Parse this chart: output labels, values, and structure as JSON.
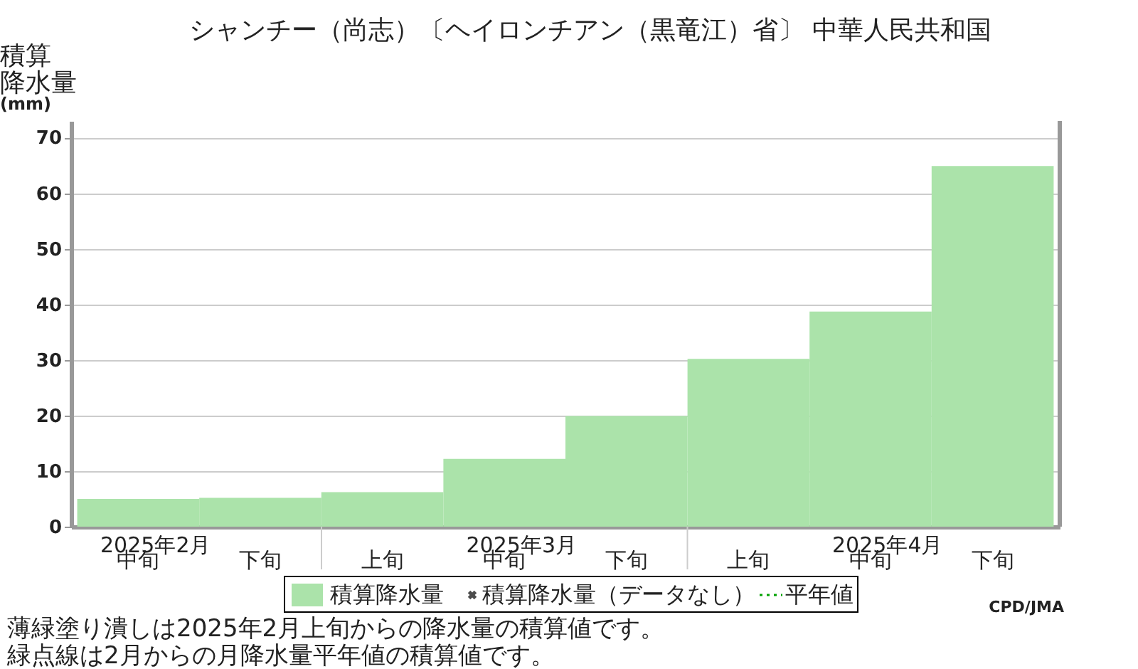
{
  "chart_data": {
    "type": "bar",
    "title": "シャンチー（尚志）〔ヘイロンチアン（黒竜江）省〕 中華人民共和国",
    "ylabel": "積算降水量(mm)",
    "categories": [
      "中旬",
      "下旬",
      "上旬",
      "中旬",
      "下旬",
      "上旬",
      "中旬",
      "下旬"
    ],
    "series": [
      {
        "name": "積算降水量",
        "color": "#abe3aa",
        "values": [
          5.0,
          5.2,
          6.2,
          12.2,
          19.9,
          30.2,
          38.7,
          64.9
        ]
      },
      {
        "name": "積算降水量（データなし）",
        "type": "scatter",
        "marker": "cross",
        "color": "#000000",
        "values": [
          null,
          null,
          null,
          null,
          null,
          null,
          null,
          null
        ]
      },
      {
        "name": "平年値",
        "type": "line",
        "line_style": "dotted",
        "color": "#00a000",
        "values": [
          null,
          null,
          null,
          null,
          null,
          null,
          null,
          null
        ]
      }
    ],
    "ylim": [
      0,
      73
    ],
    "yticks": [
      0,
      10,
      20,
      30,
      40,
      50,
      60,
      70
    ],
    "grid": "y",
    "legend": "bottom",
    "annotations": [
      "2025年2月",
      "2025年3月",
      "2025年4月",
      "薄緑塗り潰しは2025年2月上旬からの降水量の積算値です。",
      "緑点線は2月からの月降水量平年値の積算値です。",
      "CPD/JMA"
    ]
  }
}
